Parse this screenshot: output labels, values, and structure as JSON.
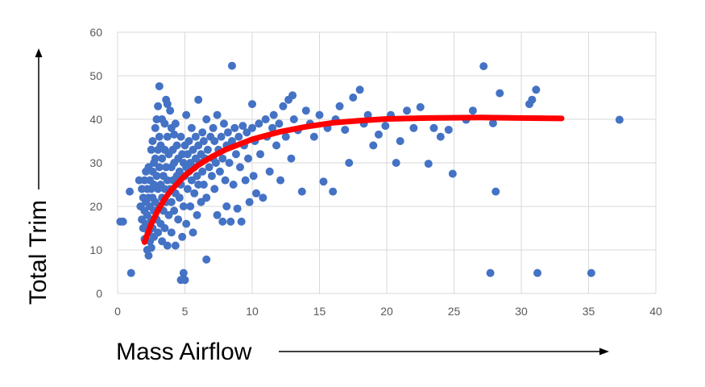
{
  "colors": {
    "points": "#4472C4",
    "trend": "#FF0000",
    "grid": "#D9D9D9",
    "ticks": "#595959",
    "arrows": "#000000"
  },
  "chart_data": {
    "type": "scatter",
    "title": "",
    "xlabel": "Mass Airflow",
    "ylabel": "Total Trim",
    "xlim": [
      0,
      40
    ],
    "ylim": [
      0,
      60
    ],
    "xticks": [
      "0",
      "5",
      "10",
      "15",
      "20",
      "25",
      "30",
      "35",
      "40"
    ],
    "yticks": [
      "0",
      "10",
      "20",
      "30",
      "40",
      "50",
      "60"
    ],
    "grid": true,
    "legend": "none",
    "series": [
      {
        "kind": "points",
        "points": [
          [
            0.2,
            16.5
          ],
          [
            0.4,
            16.5
          ],
          [
            0.9,
            23.4
          ],
          [
            1.0,
            4.7
          ],
          [
            1.6,
            26
          ],
          [
            1.7,
            20
          ],
          [
            1.8,
            24
          ],
          [
            1.8,
            17
          ],
          [
            1.9,
            22
          ],
          [
            1.9,
            15
          ],
          [
            2.0,
            26
          ],
          [
            2.0,
            19
          ],
          [
            2.0,
            12.5
          ],
          [
            2.1,
            28
          ],
          [
            2.1,
            21
          ],
          [
            2.1,
            16
          ],
          [
            2.2,
            24
          ],
          [
            2.2,
            18
          ],
          [
            2.2,
            10
          ],
          [
            2.3,
            29
          ],
          [
            2.3,
            22
          ],
          [
            2.3,
            14
          ],
          [
            2.3,
            8.7
          ],
          [
            2.4,
            26
          ],
          [
            2.4,
            20
          ],
          [
            2.4,
            12
          ],
          [
            2.5,
            33
          ],
          [
            2.5,
            24
          ],
          [
            2.5,
            17
          ],
          [
            2.5,
            10.5
          ],
          [
            2.6,
            35
          ],
          [
            2.6,
            28
          ],
          [
            2.6,
            22
          ],
          [
            2.6,
            15
          ],
          [
            2.7,
            30
          ],
          [
            2.7,
            25
          ],
          [
            2.7,
            19
          ],
          [
            2.7,
            13
          ],
          [
            2.8,
            38
          ],
          [
            2.8,
            31
          ],
          [
            2.8,
            21
          ],
          [
            2.9,
            40
          ],
          [
            2.9,
            27
          ],
          [
            2.9,
            17
          ],
          [
            3.0,
            43
          ],
          [
            3.0,
            33
          ],
          [
            3.0,
            24
          ],
          [
            3.0,
            14
          ],
          [
            3.1,
            47.6
          ],
          [
            3.1,
            36
          ],
          [
            3.1,
            29
          ],
          [
            3.1,
            20
          ],
          [
            3.2,
            34
          ],
          [
            3.2,
            25
          ],
          [
            3.2,
            16
          ],
          [
            3.3,
            40
          ],
          [
            3.3,
            31
          ],
          [
            3.3,
            22
          ],
          [
            3.3,
            12
          ],
          [
            3.4,
            27
          ],
          [
            3.4,
            19
          ],
          [
            3.5,
            39
          ],
          [
            3.5,
            33
          ],
          [
            3.5,
            24
          ],
          [
            3.5,
            15
          ],
          [
            3.6,
            44.5
          ],
          [
            3.6,
            29
          ],
          [
            3.6,
            21
          ],
          [
            3.7,
            43.5
          ],
          [
            3.7,
            36
          ],
          [
            3.7,
            26
          ],
          [
            3.7,
            11
          ],
          [
            3.8,
            32
          ],
          [
            3.8,
            18
          ],
          [
            3.9,
            42
          ],
          [
            3.9,
            24
          ],
          [
            4.0,
            38
          ],
          [
            4.0,
            29
          ],
          [
            4.0,
            21
          ],
          [
            4.0,
            14
          ],
          [
            4.1,
            33
          ],
          [
            4.1,
            26
          ],
          [
            4.2,
            36.5
          ],
          [
            4.2,
            30
          ],
          [
            4.2,
            19
          ],
          [
            4.3,
            39
          ],
          [
            4.3,
            23
          ],
          [
            4.3,
            11
          ],
          [
            4.4,
            34
          ],
          [
            4.4,
            27
          ],
          [
            4.5,
            31
          ],
          [
            4.5,
            17
          ],
          [
            4.6,
            28
          ],
          [
            4.6,
            22
          ],
          [
            4.7,
            36
          ],
          [
            4.7,
            25
          ],
          [
            4.7,
            3.1
          ],
          [
            4.8,
            32
          ],
          [
            4.8,
            13
          ],
          [
            4.9,
            4.7
          ],
          [
            4.9,
            30
          ],
          [
            4.9,
            20
          ],
          [
            5.0,
            3.1
          ],
          [
            5.0,
            34
          ],
          [
            5.0,
            27
          ],
          [
            5.1,
            41
          ],
          [
            5.1,
            29
          ],
          [
            5.1,
            16
          ],
          [
            5.2,
            32
          ],
          [
            5.2,
            24
          ],
          [
            5.3,
            35
          ],
          [
            5.3,
            28
          ],
          [
            5.4,
            30
          ],
          [
            5.4,
            20
          ],
          [
            5.5,
            38
          ],
          [
            5.5,
            26
          ],
          [
            5.6,
            33
          ],
          [
            5.6,
            14
          ],
          [
            5.7,
            29
          ],
          [
            5.7,
            23
          ],
          [
            5.8,
            36
          ],
          [
            5.8,
            31
          ],
          [
            5.9,
            27
          ],
          [
            5.9,
            18
          ],
          [
            6.0,
            44.5
          ],
          [
            6.0,
            34
          ],
          [
            6.0,
            25
          ],
          [
            6.1,
            30
          ],
          [
            6.2,
            32
          ],
          [
            6.2,
            21
          ],
          [
            6.3,
            37
          ],
          [
            6.3,
            28
          ],
          [
            6.4,
            35
          ],
          [
            6.4,
            25
          ],
          [
            6.5,
            31
          ],
          [
            6.6,
            40
          ],
          [
            6.6,
            7.8
          ],
          [
            6.6,
            22
          ],
          [
            6.7,
            33
          ],
          [
            6.8,
            29
          ],
          [
            6.9,
            36
          ],
          [
            7.0,
            27
          ],
          [
            7.1,
            38
          ],
          [
            7.1,
            31
          ],
          [
            7.2,
            35
          ],
          [
            7.2,
            24
          ],
          [
            7.3,
            30
          ],
          [
            7.4,
            41
          ],
          [
            7.4,
            18
          ],
          [
            7.5,
            33
          ],
          [
            7.6,
            28
          ],
          [
            7.7,
            36
          ],
          [
            7.8,
            16.5
          ],
          [
            7.8,
            31
          ],
          [
            7.9,
            39
          ],
          [
            8.0,
            26
          ],
          [
            8.1,
            34
          ],
          [
            8.1,
            20
          ],
          [
            8.2,
            37
          ],
          [
            8.3,
            30
          ],
          [
            8.4,
            16.5
          ],
          [
            8.5,
            52.3
          ],
          [
            8.5,
            35
          ],
          [
            8.6,
            25
          ],
          [
            8.7,
            38
          ],
          [
            8.8,
            32
          ],
          [
            8.9,
            19.5
          ],
          [
            9.0,
            36
          ],
          [
            9.1,
            29
          ],
          [
            9.2,
            16.5
          ],
          [
            9.3,
            38.5
          ],
          [
            9.4,
            34
          ],
          [
            9.5,
            26
          ],
          [
            9.6,
            37
          ],
          [
            9.7,
            31
          ],
          [
            9.8,
            21
          ],
          [
            10.0,
            38
          ],
          [
            10.0,
            43.5
          ],
          [
            10.1,
            27
          ],
          [
            10.2,
            35
          ],
          [
            10.3,
            23
          ],
          [
            10.5,
            39
          ],
          [
            10.6,
            32
          ],
          [
            10.8,
            22
          ],
          [
            11.0,
            40
          ],
          [
            11.1,
            36
          ],
          [
            11.3,
            28
          ],
          [
            11.5,
            38
          ],
          [
            11.6,
            41
          ],
          [
            11.8,
            34
          ],
          [
            12.0,
            39
          ],
          [
            12.1,
            26
          ],
          [
            12.3,
            43
          ],
          [
            12.5,
            36
          ],
          [
            12.7,
            44.5
          ],
          [
            12.9,
            31
          ],
          [
            13.0,
            45.5
          ],
          [
            13.1,
            40
          ],
          [
            13.4,
            37.5
          ],
          [
            13.7,
            23.4
          ],
          [
            14.0,
            42
          ],
          [
            14.3,
            39
          ],
          [
            14.6,
            36
          ],
          [
            15.0,
            41
          ],
          [
            15.3,
            25.7
          ],
          [
            15.6,
            38
          ],
          [
            16.0,
            23.4
          ],
          [
            16.2,
            40
          ],
          [
            16.5,
            43
          ],
          [
            16.9,
            37.6
          ],
          [
            17.2,
            30
          ],
          [
            17.5,
            45
          ],
          [
            18.0,
            46.8
          ],
          [
            18.3,
            39
          ],
          [
            18.6,
            41
          ],
          [
            19.0,
            34
          ],
          [
            19.4,
            36.5
          ],
          [
            19.9,
            38.5
          ],
          [
            20.3,
            41
          ],
          [
            20.7,
            30
          ],
          [
            21.0,
            35
          ],
          [
            21.5,
            42
          ],
          [
            22.0,
            38
          ],
          [
            22.5,
            42.8
          ],
          [
            23.1,
            29.8
          ],
          [
            23.5,
            38
          ],
          [
            24.0,
            36
          ],
          [
            24.6,
            37.6
          ],
          [
            24.9,
            27.5
          ],
          [
            25.9,
            39.9
          ],
          [
            26.4,
            42
          ],
          [
            27.2,
            52.2
          ],
          [
            27.7,
            4.7
          ],
          [
            27.9,
            39.1
          ],
          [
            28.1,
            23.4
          ],
          [
            28.4,
            46
          ],
          [
            30.6,
            43.5
          ],
          [
            30.8,
            44.5
          ],
          [
            31.1,
            46.8
          ],
          [
            31.2,
            4.7
          ],
          [
            35.2,
            4.7
          ],
          [
            37.3,
            39.9
          ]
        ]
      },
      {
        "kind": "trend",
        "points": [
          [
            2,
            11.8
          ],
          [
            2.5,
            16
          ],
          [
            3,
            19.1
          ],
          [
            3.5,
            21.7
          ],
          [
            4,
            23.8
          ],
          [
            5,
            27.1
          ],
          [
            6,
            29.5
          ],
          [
            7,
            31.4
          ],
          [
            8,
            33
          ],
          [
            10,
            35.4
          ],
          [
            12,
            37.1
          ],
          [
            14,
            38.3
          ],
          [
            16,
            39.2
          ],
          [
            18,
            39.7
          ],
          [
            20,
            40.1
          ],
          [
            23,
            40.3
          ],
          [
            27,
            40.4
          ],
          [
            30,
            40.3
          ],
          [
            33,
            40.2
          ]
        ]
      }
    ]
  }
}
